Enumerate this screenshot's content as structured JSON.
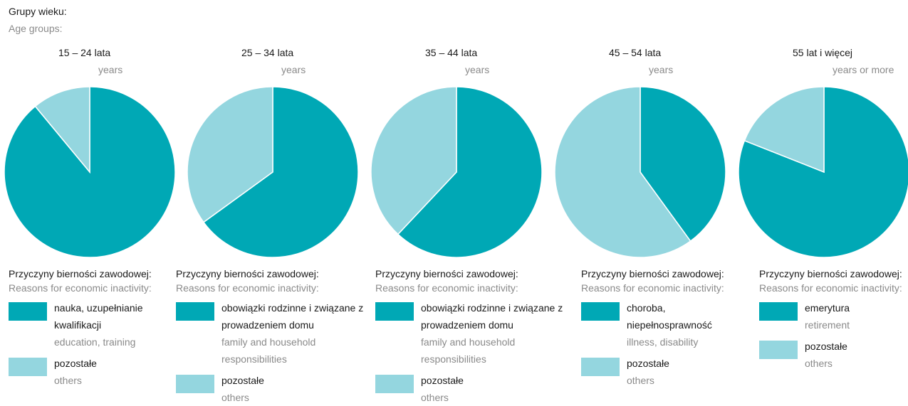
{
  "header": {
    "title": "Grupy wieku:",
    "subtitle": "Age groups:"
  },
  "chart_data": [
    {
      "type": "pie",
      "title": "15 – 24 lata",
      "subtitle": "years",
      "legend_title": "Przyczyny bierności zawodowej:",
      "legend_subtitle": "Reasons for economic inactivity:",
      "categories": [
        "nauka, uzupełnianie kwalifikacji",
        "pozostałe"
      ],
      "categories_en": [
        "education, training",
        "others"
      ],
      "values": [
        89,
        11
      ],
      "colors": [
        "#00a8b5",
        "#94d6df"
      ]
    },
    {
      "type": "pie",
      "title": "25 – 34 lata",
      "subtitle": "years",
      "legend_title": "Przyczyny bierności zawodowej:",
      "legend_subtitle": "Reasons for economic inactivity:",
      "categories": [
        "obowiązki rodzinne i związane z prowadzeniem domu",
        "pozostałe"
      ],
      "categories_en": [
        "family and household responsibilities",
        "others"
      ],
      "values": [
        65,
        35
      ],
      "colors": [
        "#00a8b5",
        "#94d6df"
      ]
    },
    {
      "type": "pie",
      "title": "35 – 44 lata",
      "subtitle": "years",
      "legend_title": "Przyczyny bierności zawodowej:",
      "legend_subtitle": "Reasons for economic inactivity:",
      "categories": [
        "obowiązki rodzinne i związane z prowadzeniem domu",
        "pozostałe"
      ],
      "categories_en": [
        "family and household responsibilities",
        "others"
      ],
      "values": [
        62,
        38
      ],
      "colors": [
        "#00a8b5",
        "#94d6df"
      ]
    },
    {
      "type": "pie",
      "title": "45 – 54 lata",
      "subtitle": "years",
      "legend_title": "Przyczyny bierności zawodowej:",
      "legend_subtitle": "Reasons for economic inactivity:",
      "categories": [
        "choroba, niepełnosprawność",
        "pozostałe"
      ],
      "categories_en": [
        "illness, disability",
        "others"
      ],
      "values": [
        40,
        60
      ],
      "colors": [
        "#00a8b5",
        "#94d6df"
      ]
    },
    {
      "type": "pie",
      "title": "55 lat i więcej",
      "subtitle": "years or more",
      "legend_title": "Przyczyny bierności zawodowej:",
      "legend_subtitle": "Reasons for economic inactivity:",
      "categories": [
        "emerytura",
        "pozostałe"
      ],
      "categories_en": [
        "retirement",
        "others"
      ],
      "values": [
        81,
        19
      ],
      "colors": [
        "#00a8b5",
        "#94d6df"
      ]
    }
  ]
}
